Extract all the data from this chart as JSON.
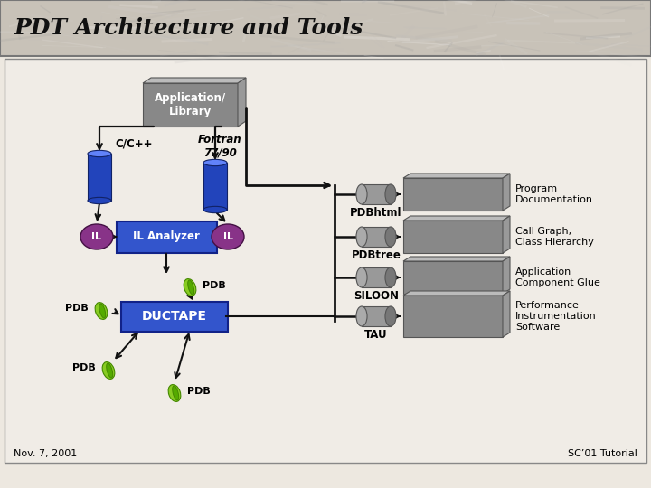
{
  "title": "PDT Architecture and Tools",
  "date_label": "Nov. 7, 2001",
  "tutorial_label": "SC’01 Tutorial",
  "bg_main": "#ede8e0",
  "bg_title": "#c8c2b8",
  "blue": "#2244bb",
  "blue_il": "#3355cc",
  "gray_med": "#888888",
  "gray_light": "#aaaaaa",
  "green1": "#88cc22",
  "green2": "#55aa11",
  "purple": "#883388",
  "black": "#111111",
  "white": "#ffffff",
  "app_lib": "Application/\nLibrary",
  "il_analyzer": "IL Analyzer",
  "ductape": "DUCTAPE",
  "cc_label": "C/C++",
  "fortran_label": "Fortran\n77/90",
  "il_label": "IL",
  "pdb_labels": [
    "PDB",
    "PDB",
    "PDB",
    "PDB"
  ],
  "right_connectors": [
    "PDBhtml",
    "PDBtree",
    "SILOON",
    "TAU"
  ],
  "right_boxes": [
    "Program\nDocumentation",
    "Call Graph,\nClass Hierarchy",
    "Application\nComponent Glue",
    "Performance\nInstrumentation\nSoftware"
  ]
}
